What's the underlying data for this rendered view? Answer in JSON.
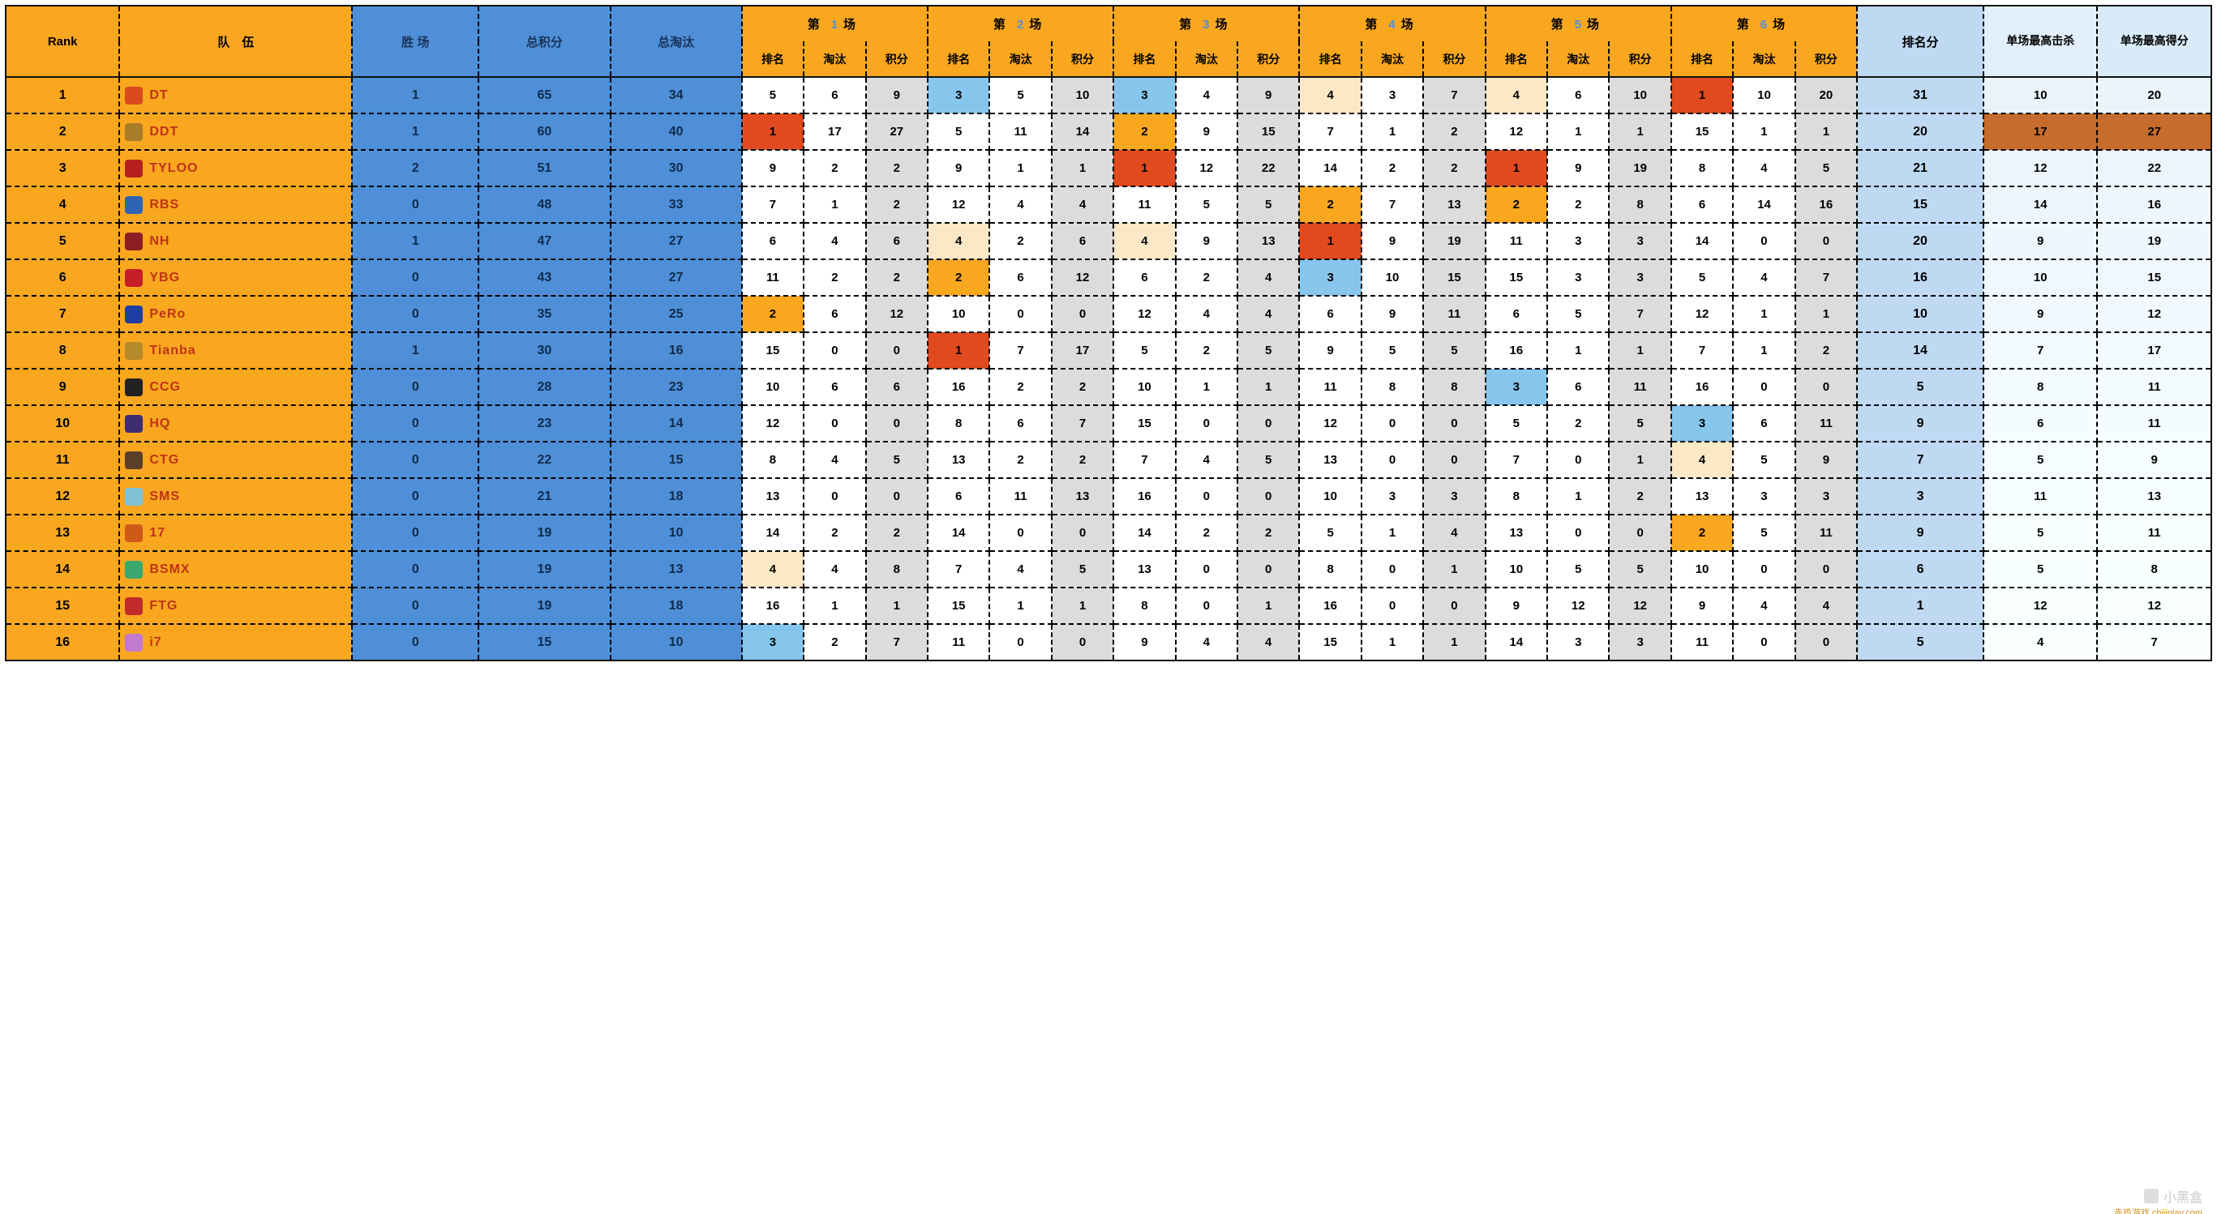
{
  "meta": {
    "columns": {
      "rank": "Rank",
      "team": "队　伍",
      "wins": "胜 场",
      "totalPts": "总积分",
      "totalElim": "总淘汰",
      "match_prefix": "第",
      "match_suffix": "场",
      "sub_rank": "排名",
      "sub_elim": "淘汰",
      "sub_pts": "积分",
      "rankPts": "排名分",
      "maxKill": "单场最高击杀",
      "maxScore": "单场最高得分"
    },
    "matches": [
      1,
      2,
      3,
      4,
      5,
      6
    ],
    "colors": {
      "headerOrange": "#f8a71f",
      "headerBlue": "#4f8fd8",
      "headerSoftBlue": "#bfd9f3",
      "highlightRed": "#e14a1f",
      "highlightOrange": "#f8a71f",
      "highlightSky": "#86c6ec",
      "highlightCream": "#fce8c6",
      "ptsGrey": "#dcdcdc",
      "maxBrown": "#c66c2d",
      "teamText": "#c03315",
      "border": "#111111",
      "fontSizeHeader": 15,
      "fontSizeBody": 15
    },
    "rankHighlight": {
      "1": "hl-red",
      "2": "hl-orange",
      "3": "hl-sky",
      "4": "hl-cream"
    },
    "teamLogoColors": {
      "DT": "#d94a1c",
      "DDT": "#a87c28",
      "TYLOO": "#b5201f",
      "RBS": "#2f64b5",
      "NH": "#8c1d22",
      "YBG": "#c61e27",
      "PeRo": "#1f3ea0",
      "Tianba": "#b58a2a",
      "CCG": "#222222",
      "HQ": "#3d2d73",
      "CTG": "#5a3e29",
      "SMS": "#7fc2d6",
      "17": "#cf5a18",
      "BSMX": "#3aa86d",
      "FTG": "#c22b2b",
      "i7": "#c27ad1"
    },
    "summaryRowGradient": true
  },
  "rows": [
    {
      "rank": 1,
      "team": "DT",
      "wins": 1,
      "totalPts": 65,
      "totalElim": 34,
      "rounds": [
        [
          5,
          6,
          9
        ],
        [
          3,
          5,
          10
        ],
        [
          3,
          4,
          9
        ],
        [
          4,
          3,
          7
        ],
        [
          4,
          6,
          10
        ],
        [
          1,
          10,
          20
        ]
      ],
      "rankPts": 31,
      "maxKill": 10,
      "maxScore": 20
    },
    {
      "rank": 2,
      "team": "DDT",
      "wins": 1,
      "totalPts": 60,
      "totalElim": 40,
      "rounds": [
        [
          1,
          17,
          27
        ],
        [
          5,
          11,
          14
        ],
        [
          2,
          9,
          15
        ],
        [
          7,
          1,
          2
        ],
        [
          12,
          1,
          1
        ],
        [
          15,
          1,
          1
        ]
      ],
      "rankPts": 20,
      "maxKill": 17,
      "maxScore": 27,
      "maxHL": true
    },
    {
      "rank": 3,
      "team": "TYLOO",
      "wins": 2,
      "totalPts": 51,
      "totalElim": 30,
      "rounds": [
        [
          9,
          2,
          2
        ],
        [
          9,
          1,
          1
        ],
        [
          1,
          12,
          22
        ],
        [
          14,
          2,
          2
        ],
        [
          1,
          9,
          19
        ],
        [
          8,
          4,
          5
        ]
      ],
      "rankPts": 21,
      "maxKill": 12,
      "maxScore": 22
    },
    {
      "rank": 4,
      "team": "RBS",
      "wins": 0,
      "totalPts": 48,
      "totalElim": 33,
      "rounds": [
        [
          7,
          1,
          2
        ],
        [
          12,
          4,
          4
        ],
        [
          11,
          5,
          5
        ],
        [
          2,
          7,
          13
        ],
        [
          2,
          2,
          8
        ],
        [
          6,
          14,
          16
        ]
      ],
      "rankPts": 15,
      "maxKill": 14,
      "maxScore": 16
    },
    {
      "rank": 5,
      "team": "NH",
      "wins": 1,
      "totalPts": 47,
      "totalElim": 27,
      "rounds": [
        [
          6,
          4,
          6
        ],
        [
          4,
          2,
          6
        ],
        [
          4,
          9,
          13
        ],
        [
          1,
          9,
          19
        ],
        [
          11,
          3,
          3
        ],
        [
          14,
          0,
          0
        ]
      ],
      "rankPts": 20,
      "maxKill": 9,
      "maxScore": 19
    },
    {
      "rank": 6,
      "team": "YBG",
      "wins": 0,
      "totalPts": 43,
      "totalElim": 27,
      "rounds": [
        [
          11,
          2,
          2
        ],
        [
          2,
          6,
          12
        ],
        [
          6,
          2,
          4
        ],
        [
          3,
          10,
          15
        ],
        [
          15,
          3,
          3
        ],
        [
          5,
          4,
          7
        ]
      ],
      "rankPts": 16,
      "maxKill": 10,
      "maxScore": 15
    },
    {
      "rank": 7,
      "team": "PeRo",
      "wins": 0,
      "totalPts": 35,
      "totalElim": 25,
      "rounds": [
        [
          2,
          6,
          12
        ],
        [
          10,
          0,
          0
        ],
        [
          12,
          4,
          4
        ],
        [
          6,
          9,
          11
        ],
        [
          6,
          5,
          7
        ],
        [
          12,
          1,
          1
        ]
      ],
      "rankPts": 10,
      "maxKill": 9,
      "maxScore": 12
    },
    {
      "rank": 8,
      "team": "Tianba",
      "wins": 1,
      "totalPts": 30,
      "totalElim": 16,
      "rounds": [
        [
          15,
          0,
          0
        ],
        [
          1,
          7,
          17
        ],
        [
          5,
          2,
          5
        ],
        [
          9,
          5,
          5
        ],
        [
          16,
          1,
          1
        ],
        [
          7,
          1,
          2
        ]
      ],
      "rankPts": 14,
      "maxKill": 7,
      "maxScore": 17
    },
    {
      "rank": 9,
      "team": "CCG",
      "wins": 0,
      "totalPts": 28,
      "totalElim": 23,
      "rounds": [
        [
          10,
          6,
          6
        ],
        [
          16,
          2,
          2
        ],
        [
          10,
          1,
          1
        ],
        [
          11,
          8,
          8
        ],
        [
          3,
          6,
          11
        ],
        [
          16,
          0,
          0
        ]
      ],
      "rankPts": 5,
      "maxKill": 8,
      "maxScore": 11
    },
    {
      "rank": 10,
      "team": "HQ",
      "wins": 0,
      "totalPts": 23,
      "totalElim": 14,
      "rounds": [
        [
          12,
          0,
          0
        ],
        [
          8,
          6,
          7
        ],
        [
          15,
          0,
          0
        ],
        [
          12,
          0,
          0
        ],
        [
          5,
          2,
          5
        ],
        [
          3,
          6,
          11
        ]
      ],
      "rankPts": 9,
      "maxKill": 6,
      "maxScore": 11
    },
    {
      "rank": 11,
      "team": "CTG",
      "wins": 0,
      "totalPts": 22,
      "totalElim": 15,
      "rounds": [
        [
          8,
          4,
          5
        ],
        [
          13,
          2,
          2
        ],
        [
          7,
          4,
          5
        ],
        [
          13,
          0,
          0
        ],
        [
          7,
          0,
          1
        ],
        [
          4,
          5,
          9
        ]
      ],
      "rankPts": 7,
      "maxKill": 5,
      "maxScore": 9
    },
    {
      "rank": 12,
      "team": "SMS",
      "wins": 0,
      "totalPts": 21,
      "totalElim": 18,
      "rounds": [
        [
          13,
          0,
          0
        ],
        [
          6,
          11,
          13
        ],
        [
          16,
          0,
          0
        ],
        [
          10,
          3,
          3
        ],
        [
          8,
          1,
          2
        ],
        [
          13,
          3,
          3
        ]
      ],
      "rankPts": 3,
      "maxKill": 11,
      "maxScore": 13
    },
    {
      "rank": 13,
      "team": "17",
      "wins": 0,
      "totalPts": 19,
      "totalElim": 10,
      "rounds": [
        [
          14,
          2,
          2
        ],
        [
          14,
          0,
          0
        ],
        [
          14,
          2,
          2
        ],
        [
          5,
          1,
          4
        ],
        [
          13,
          0,
          0
        ],
        [
          2,
          5,
          11
        ]
      ],
      "rankPts": 9,
      "maxKill": 5,
      "maxScore": 11
    },
    {
      "rank": 14,
      "team": "BSMX",
      "wins": 0,
      "totalPts": 19,
      "totalElim": 13,
      "rounds": [
        [
          4,
          4,
          8
        ],
        [
          7,
          4,
          5
        ],
        [
          13,
          0,
          0
        ],
        [
          8,
          0,
          1
        ],
        [
          10,
          5,
          5
        ],
        [
          10,
          0,
          0
        ]
      ],
      "rankPts": 6,
      "maxKill": 5,
      "maxScore": 8
    },
    {
      "rank": 15,
      "team": "FTG",
      "wins": 0,
      "totalPts": 19,
      "totalElim": 18,
      "rounds": [
        [
          16,
          1,
          1
        ],
        [
          15,
          1,
          1
        ],
        [
          8,
          0,
          1
        ],
        [
          16,
          0,
          0
        ],
        [
          9,
          12,
          12
        ],
        [
          9,
          4,
          4
        ]
      ],
      "rankPts": 1,
      "maxKill": 12,
      "maxScore": 12
    },
    {
      "rank": 16,
      "team": "i7",
      "wins": 0,
      "totalPts": 15,
      "totalElim": 10,
      "rounds": [
        [
          3,
          2,
          7
        ],
        [
          11,
          0,
          0
        ],
        [
          9,
          4,
          4
        ],
        [
          15,
          1,
          1
        ],
        [
          14,
          3,
          3
        ],
        [
          11,
          0,
          0
        ]
      ],
      "rankPts": 5,
      "maxKill": 4,
      "maxScore": 7
    }
  ],
  "watermark": {
    "text": "小黑盒",
    "sub": "赤鸡游戏 chijiplay.com"
  }
}
